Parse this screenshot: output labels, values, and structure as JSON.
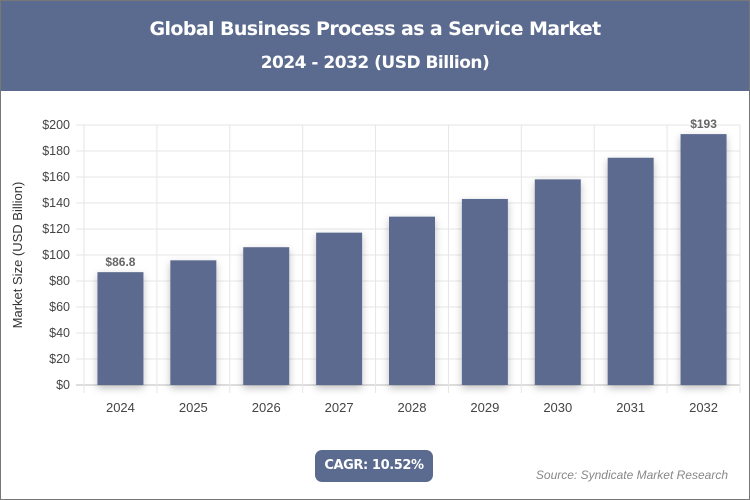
{
  "header": {
    "title": "Global Business Process as a Service Market",
    "subtitle": "2024 - 2032 (USD Billion)"
  },
  "chart_data": {
    "type": "bar",
    "title": "Global Business Process as a Service Market",
    "subtitle": "2024 - 2032 (USD Billion)",
    "xlabel": "",
    "ylabel": "Market Size (USD Billion)",
    "categories": [
      "2024",
      "2025",
      "2026",
      "2027",
      "2028",
      "2029",
      "2030",
      "2031",
      "2032"
    ],
    "values": [
      86.8,
      95.9,
      106.0,
      117.2,
      129.5,
      143.1,
      158.2,
      174.8,
      193
    ],
    "data_labels": {
      "0": "$86.8",
      "8": "$193"
    },
    "ylim": [
      0,
      200
    ],
    "yticks": [
      0,
      20,
      40,
      60,
      80,
      100,
      120,
      140,
      160,
      180,
      200
    ],
    "ytick_labels": [
      "$0",
      "$20",
      "$40",
      "$60",
      "$80",
      "$100",
      "$120",
      "$140",
      "$160",
      "$180",
      "$200"
    ],
    "grid": true,
    "bar_color": "#5b6b8f"
  },
  "footer": {
    "cagr": "CAGR: 10.52%",
    "source": "Source: Syndicate Market Research"
  }
}
